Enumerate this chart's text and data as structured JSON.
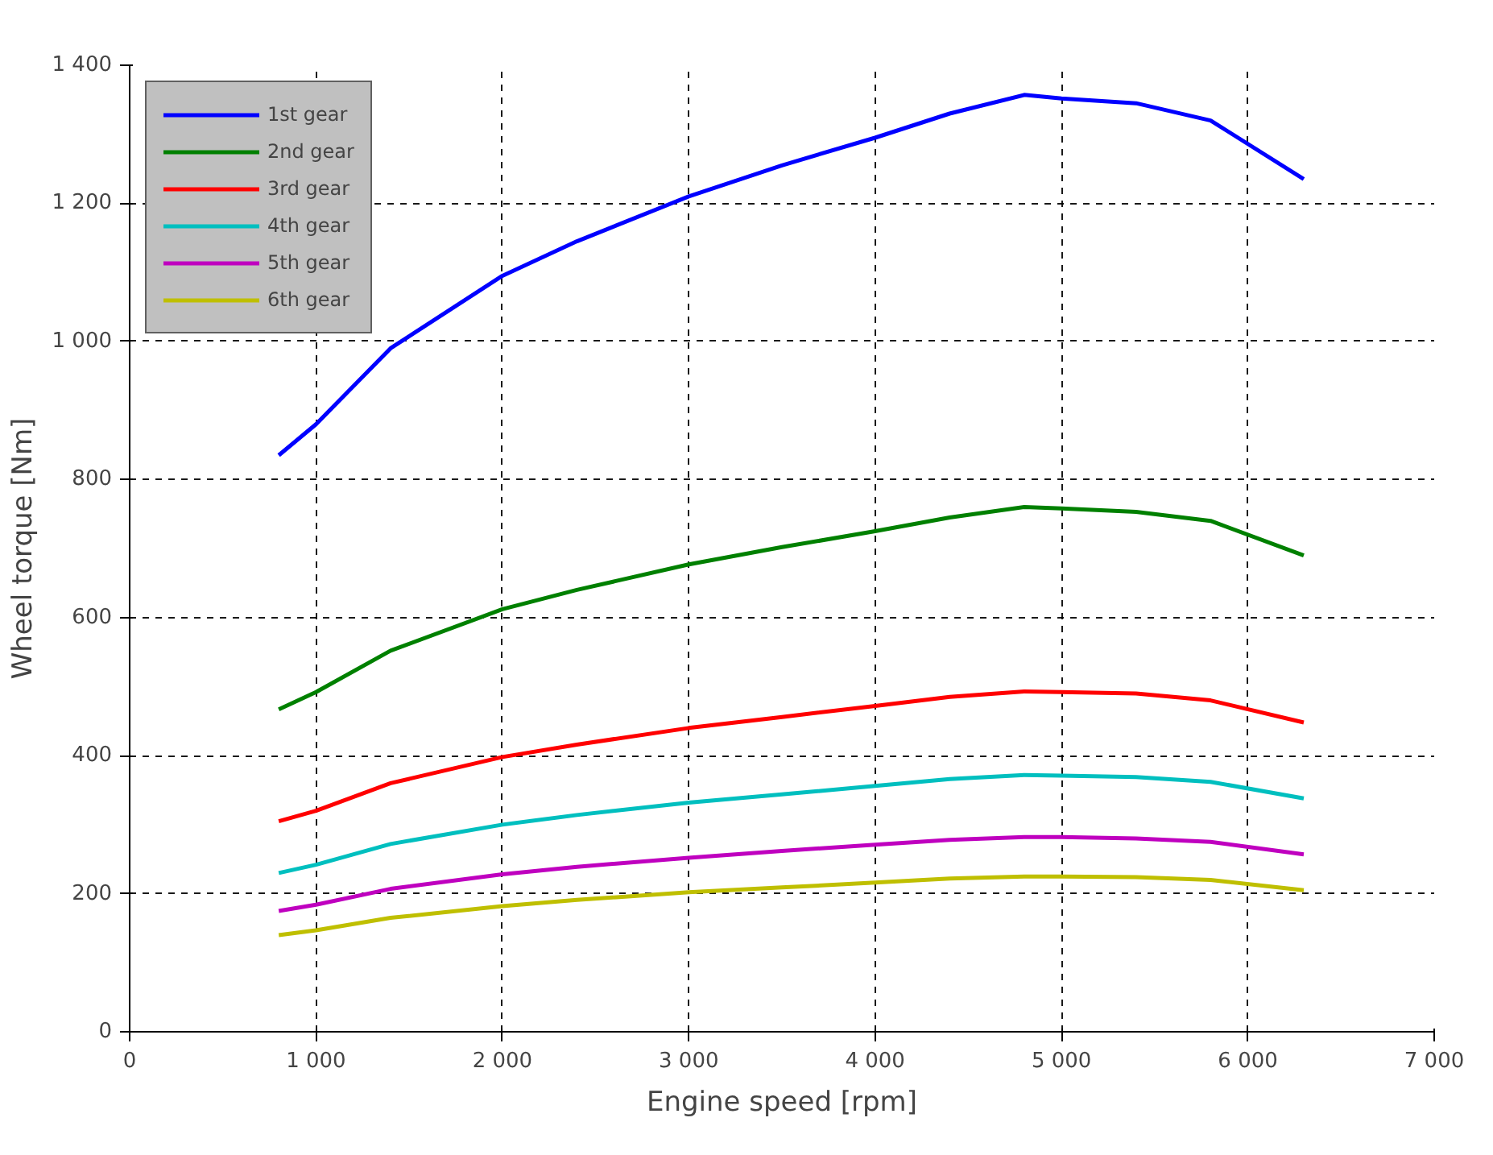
{
  "chart_data": {
    "type": "line",
    "xlabel": "Engine speed [rpm]",
    "ylabel": "Wheel torque [Nm]",
    "x": [
      800,
      1000,
      1400,
      2000,
      2400,
      3000,
      3500,
      4000,
      4400,
      4800,
      5000,
      5400,
      5800,
      6300
    ],
    "series": [
      {
        "name": "1st gear",
        "color": "#0000ff",
        "values": [
          835,
          880,
          990,
          1095,
          1145,
          1210,
          1255,
          1295,
          1330,
          1357,
          1352,
          1345,
          1320,
          1235
        ]
      },
      {
        "name": "2nd gear",
        "color": "#008000",
        "values": [
          467,
          492,
          552,
          612,
          640,
          677,
          702,
          725,
          745,
          760,
          758,
          753,
          740,
          690
        ]
      },
      {
        "name": "3rd gear",
        "color": "#ff0000",
        "values": [
          305,
          320,
          360,
          398,
          416,
          440,
          456,
          472,
          485,
          493,
          492,
          490,
          480,
          448
        ]
      },
      {
        "name": "4th gear",
        "color": "#00bfbf",
        "values": [
          230,
          242,
          272,
          300,
          314,
          332,
          344,
          356,
          366,
          372,
          371,
          369,
          362,
          338
        ]
      },
      {
        "name": "5th gear",
        "color": "#bf00bf",
        "values": [
          175,
          184,
          207,
          228,
          239,
          252,
          262,
          271,
          278,
          282,
          282,
          280,
          275,
          257
        ]
      },
      {
        "name": "6th gear",
        "color": "#bfbf00",
        "values": [
          140,
          147,
          165,
          182,
          191,
          202,
          209,
          216,
          222,
          225,
          225,
          224,
          220,
          205
        ]
      }
    ],
    "xlim": [
      0,
      7000
    ],
    "ylim": [
      0,
      1400
    ],
    "xticks": [
      0,
      {
        "value": 1000,
        "label": "1 000"
      },
      {
        "value": 2000,
        "label": "2 000"
      },
      {
        "value": 3000,
        "label": "3 000"
      },
      {
        "value": 4000,
        "label": "4 000"
      },
      {
        "value": 5000,
        "label": "5 000"
      },
      {
        "value": 6000,
        "label": "6 000"
      },
      {
        "value": 7000,
        "label": "7 000"
      }
    ],
    "yticks": [
      0,
      200,
      400,
      600,
      800,
      {
        "value": 1000,
        "label": "1 000"
      },
      {
        "value": 1200,
        "label": "1 200"
      },
      {
        "value": 1400,
        "label": "1 400"
      }
    ],
    "grid": true,
    "legend": "top left",
    "marker": "none",
    "line_style": "solid"
  }
}
